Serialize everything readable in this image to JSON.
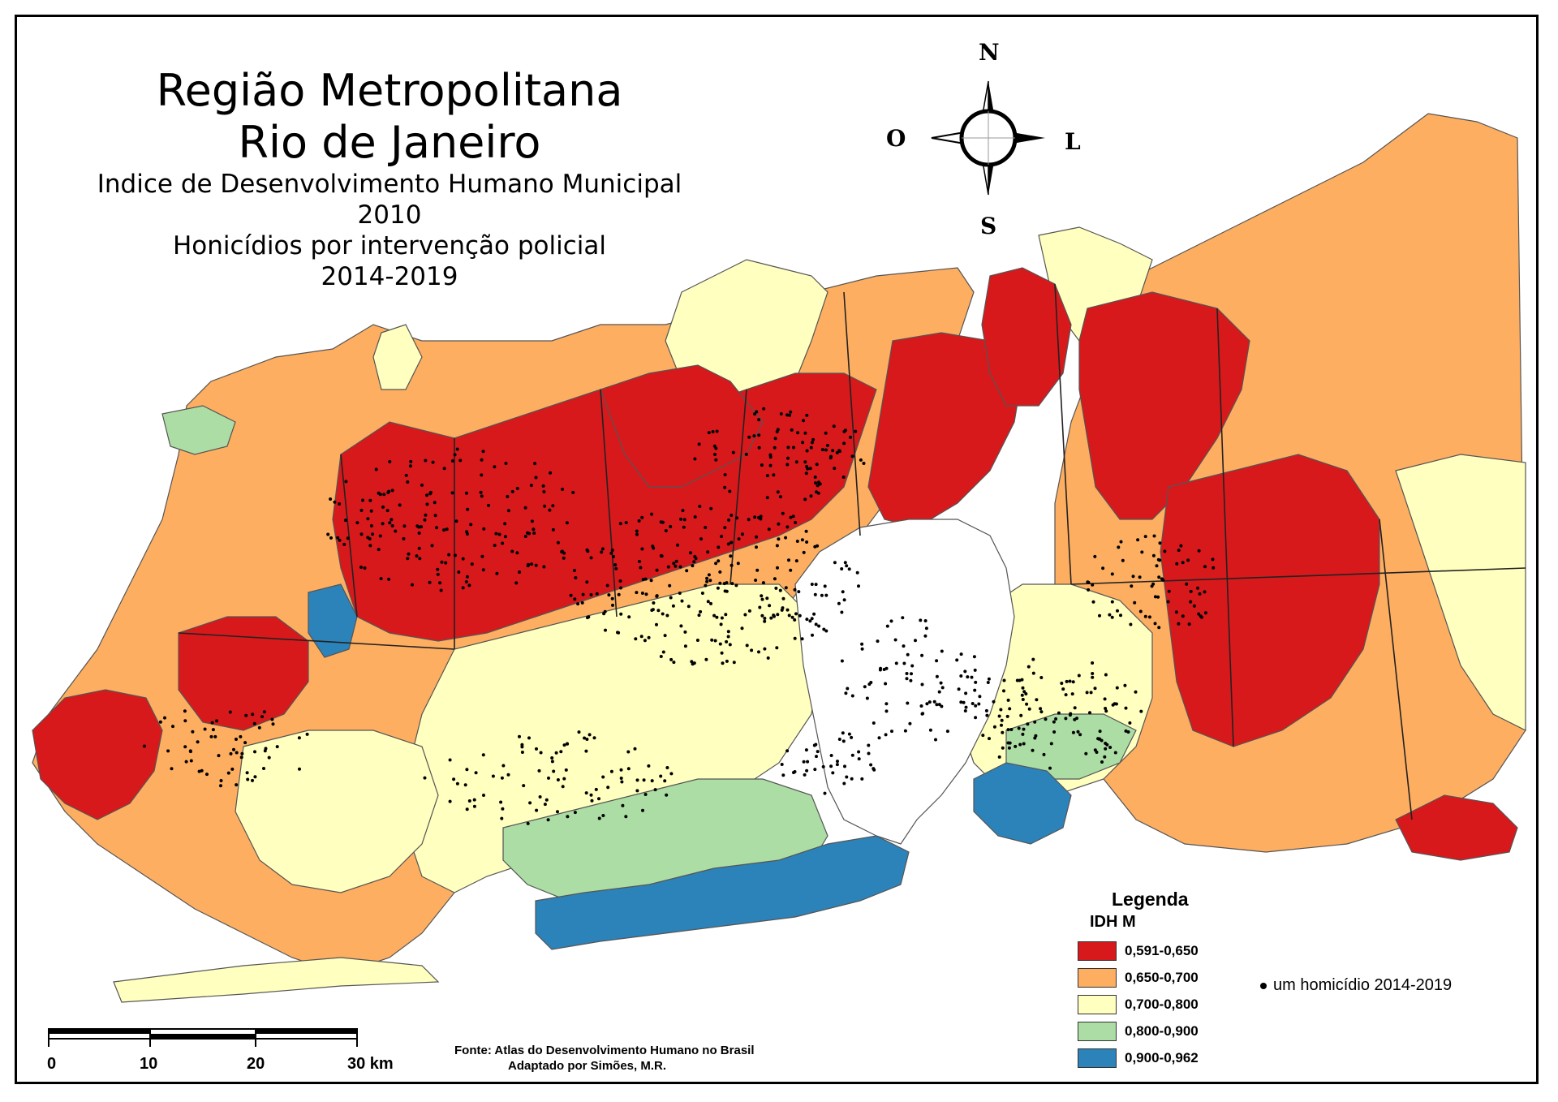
{
  "title": {
    "line1": "Região Metropolitana",
    "line2": "Rio de Janeiro",
    "line3": "Indice de Desenvolvimento Humano Municipal",
    "line4": "2010",
    "line5": "Honicídios por intervenção policial",
    "line6": "2014-2019"
  },
  "compass": {
    "north": "N",
    "south": "S",
    "west": "O",
    "east": "L"
  },
  "legend": {
    "title": "Legenda",
    "subtitle": "IDH M",
    "classes": [
      {
        "label": "0,591-0,650",
        "color": "#d7191c"
      },
      {
        "label": "0,650-0,700",
        "color": "#fdae61"
      },
      {
        "label": "0,700-0,800",
        "color": "#ffffbf"
      },
      {
        "label": "0,800-0,900",
        "color": "#abdda4"
      },
      {
        "label": "0,900-0,962",
        "color": "#2b83ba"
      }
    ],
    "dot_label": "um homicídio 2014-2019"
  },
  "scale_bar": {
    "labels": [
      "0",
      "10",
      "20",
      "30 km"
    ]
  },
  "source": {
    "line1": "Fonte: Atlas do Desenvolvimento Humano no Brasil",
    "line2": "Adaptado por Simões, M.R."
  },
  "colors": {
    "frame": "#000000",
    "water": "#ffffff",
    "boundary": "#5a5a5a"
  }
}
